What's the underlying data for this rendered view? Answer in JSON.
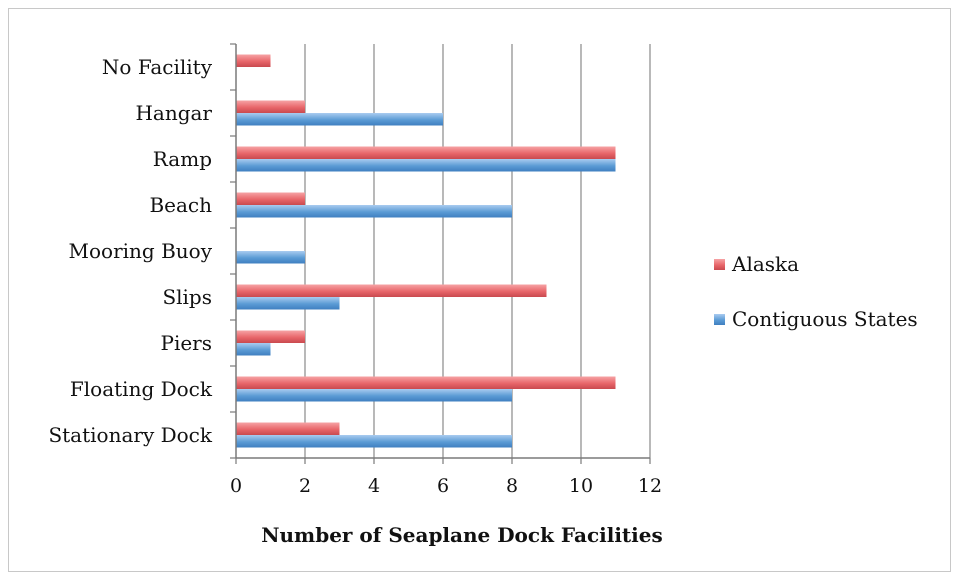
{
  "chart_data": {
    "type": "bar",
    "orientation": "horizontal",
    "categories": [
      "Stationary Dock",
      "Floating Dock",
      "Piers",
      "Slips",
      "Mooring Buoy",
      "Beach",
      "Ramp",
      "Hangar",
      "No Facility"
    ],
    "series": [
      {
        "name": "Alaska",
        "color": "#e8666a",
        "values": [
          3,
          11,
          2,
          9,
          0,
          2,
          11,
          2,
          1
        ]
      },
      {
        "name": "Contiguous States",
        "color": "#5b9bd5",
        "values": [
          8,
          8,
          1,
          3,
          2,
          8,
          11,
          6,
          0
        ]
      }
    ],
    "title": "",
    "xlabel": "Number of Seaplane Dock Facilities",
    "ylabel": "",
    "xlim": [
      0,
      12
    ],
    "xticks": [
      "0",
      "2",
      "4",
      "6",
      "8",
      "10",
      "12"
    ],
    "grid": "vertical",
    "legend_position": "right"
  }
}
